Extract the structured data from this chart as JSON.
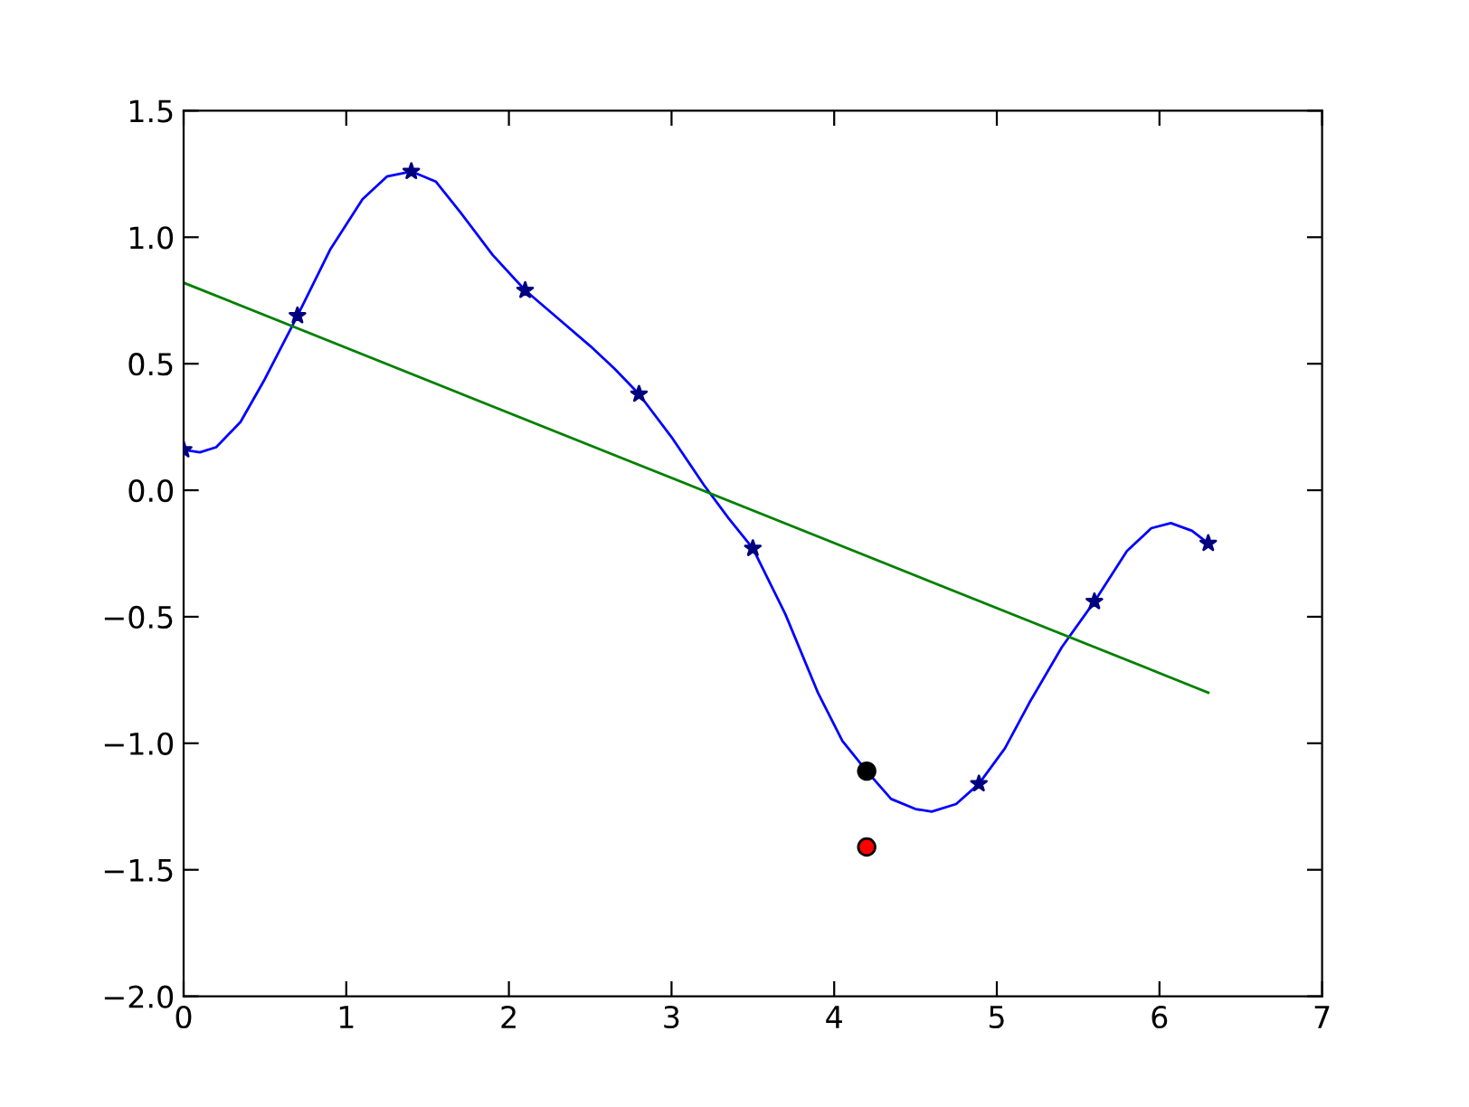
{
  "chart_data": {
    "type": "line",
    "xlim": [
      0,
      7
    ],
    "ylim": [
      -2.0,
      1.5
    ],
    "xticks": [
      0,
      1,
      2,
      3,
      4,
      5,
      6,
      7
    ],
    "yticks": [
      {
        "value": -2.0,
        "label": "−2.0"
      },
      {
        "value": -1.5,
        "label": "−1.5"
      },
      {
        "value": -1.0,
        "label": "−1.0"
      },
      {
        "value": -0.5,
        "label": "−0.5"
      },
      {
        "value": 0.0,
        "label": "0.0"
      },
      {
        "value": 0.5,
        "label": "0.5"
      },
      {
        "value": 1.0,
        "label": "1.0"
      },
      {
        "value": 1.5,
        "label": "1.5"
      }
    ],
    "grid": false,
    "series": [
      {
        "color": "#0000ff",
        "marker": "none",
        "x": [
          0,
          0.1,
          0.2,
          0.35,
          0.5,
          0.7,
          0.9,
          1.1,
          1.25,
          1.4,
          1.55,
          1.7,
          1.9,
          2.1,
          2.3,
          2.5,
          2.65,
          2.8,
          3.0,
          3.2,
          3.35,
          3.5,
          3.7,
          3.9,
          4.05,
          4.2,
          4.35,
          4.5,
          4.6,
          4.75,
          4.89,
          5.05,
          5.2,
          5.4,
          5.6,
          5.8,
          5.95,
          6.07,
          6.2,
          6.3
        ],
        "values": [
          0.16,
          0.15,
          0.17,
          0.27,
          0.44,
          0.69,
          0.95,
          1.15,
          1.24,
          1.26,
          1.22,
          1.1,
          0.93,
          0.79,
          0.68,
          0.57,
          0.48,
          0.38,
          0.21,
          0.02,
          -0.11,
          -0.23,
          -0.49,
          -0.8,
          -0.99,
          -1.11,
          -1.22,
          -1.26,
          -1.27,
          -1.24,
          -1.16,
          -1.02,
          -0.84,
          -0.62,
          -0.44,
          -0.24,
          -0.15,
          -0.13,
          -0.16,
          -0.21
        ]
      },
      {
        "type": "scatter",
        "color": "#00007f",
        "marker": "star",
        "x": [
          0,
          0.7,
          1.4,
          2.1,
          2.8,
          3.5,
          4.2,
          4.89,
          5.6,
          6.3
        ],
        "values": [
          0.16,
          0.69,
          1.26,
          0.79,
          0.38,
          -0.23,
          null,
          -1.16,
          -0.44,
          -0.21
        ]
      },
      {
        "color": "#008000",
        "marker": "none",
        "x": [
          0,
          6.3
        ],
        "values": [
          0.82,
          -0.8
        ]
      },
      {
        "type": "scatter",
        "color": "#000000",
        "marker": "circle",
        "x": [
          4.2
        ],
        "values": [
          -1.11
        ]
      },
      {
        "type": "scatter",
        "color": "#ff0000",
        "marker": "circle",
        "x": [
          4.2
        ],
        "values": [
          -1.41
        ]
      }
    ]
  }
}
